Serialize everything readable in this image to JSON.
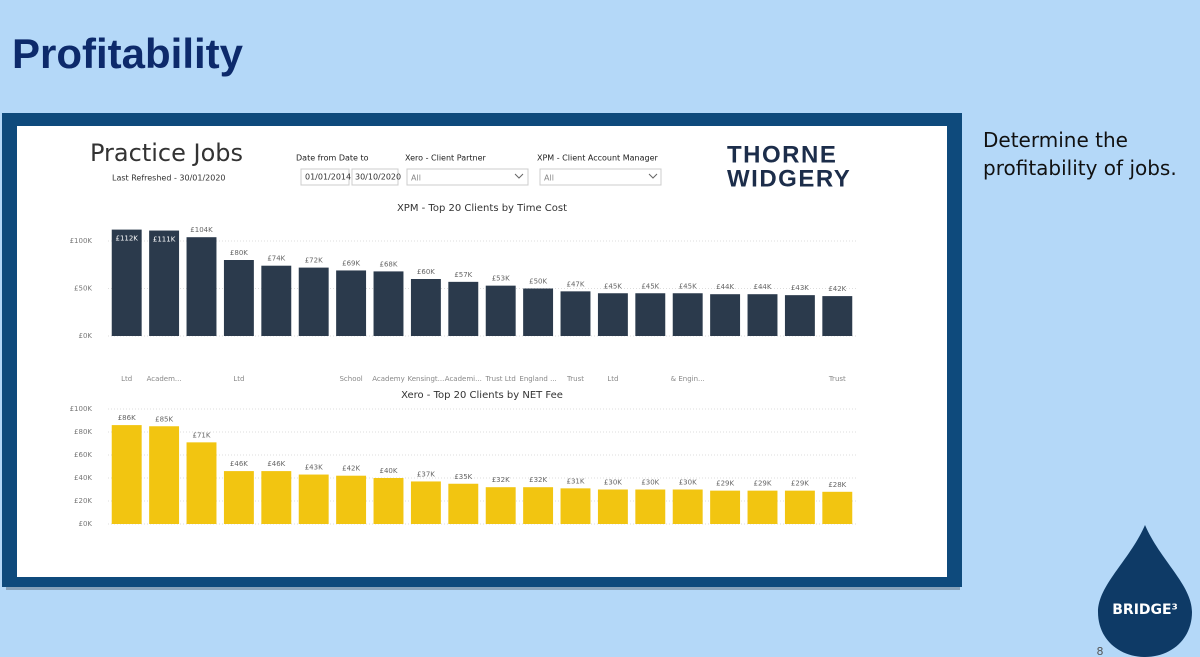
{
  "slide": {
    "title": "Profitability",
    "description": "Determine the profitability of jobs.",
    "logo": "BRIDGE³",
    "page_number": "8"
  },
  "dashboard": {
    "title": "Practice Jobs",
    "subtitle": "Last Refreshed - 30/01/2020",
    "brand_line1": "THORNE",
    "brand_line2": "WIDGERY",
    "filters": [
      {
        "label": "Date from Date to",
        "from": "01/01/2014",
        "to": "30/10/2020"
      },
      {
        "label": "Xero - Client Partner",
        "value": "All"
      },
      {
        "label": "XPM - Client Account Manager",
        "value": "All"
      }
    ]
  },
  "chart_data": [
    {
      "type": "bar",
      "title": "XPM - Top 20 Clients by Time Cost",
      "color": "#2b3a4c",
      "grid": true,
      "categories": [
        "Ltd",
        "Academ...",
        null,
        "Ltd",
        null,
        null,
        "School",
        "Academy",
        "Kensingt...",
        "Academi...",
        "Trust Ltd",
        "England ...",
        "Trust",
        "Ltd",
        null,
        "& Engin...",
        null,
        null,
        null,
        "Trust"
      ],
      "values": [
        112000,
        111000,
        104000,
        80000,
        74000,
        72000,
        69000,
        68000,
        60000,
        57000,
        53000,
        50000,
        47000,
        45000,
        45000,
        45000,
        44000,
        44000,
        43000,
        42000
      ],
      "value_labels": [
        "£112K",
        "£111K",
        "£104K",
        "£80K",
        "£74K",
        "£72K",
        "£69K",
        "£68K",
        "£60K",
        "£57K",
        "£53K",
        "£50K",
        "£47K",
        "£45K",
        "£45K",
        "£45K",
        "£44K",
        "£44K",
        "£43K",
        "£42K"
      ],
      "ylim": [
        0,
        120000
      ],
      "yticks": [
        {
          "value": 0,
          "label": "£0K"
        },
        {
          "value": 50000,
          "label": "£50K"
        },
        {
          "value": 100000,
          "label": "£100K"
        }
      ]
    },
    {
      "type": "bar",
      "title": "Xero - Top 20 Clients by NET Fee",
      "color": "#f2c511",
      "grid": true,
      "categories": [
        null,
        null,
        null,
        null,
        null,
        null,
        null,
        null,
        null,
        null,
        null,
        null,
        null,
        null,
        null,
        null,
        null,
        null,
        null,
        null
      ],
      "values": [
        86000,
        85000,
        71000,
        46000,
        46000,
        43000,
        42000,
        40000,
        37000,
        35000,
        32000,
        32000,
        31000,
        30000,
        30000,
        30000,
        29000,
        29000,
        29000,
        28000
      ],
      "value_labels": [
        "£86K",
        "£85K",
        "£71K",
        "£46K",
        "£46K",
        "£43K",
        "£42K",
        "£40K",
        "£37K",
        "£35K",
        "£32K",
        "£32K",
        "£31K",
        "£30K",
        "£30K",
        "£30K",
        "£29K",
        "£29K",
        "£29K",
        "£28K"
      ],
      "ylim": [
        0,
        100000
      ],
      "yticks": [
        {
          "value": 0,
          "label": "£0K"
        },
        {
          "value": 20000,
          "label": "£20K"
        },
        {
          "value": 40000,
          "label": "£40K"
        },
        {
          "value": 60000,
          "label": "£60K"
        },
        {
          "value": 80000,
          "label": "£80K"
        },
        {
          "value": 100000,
          "label": "£100K"
        }
      ]
    }
  ]
}
